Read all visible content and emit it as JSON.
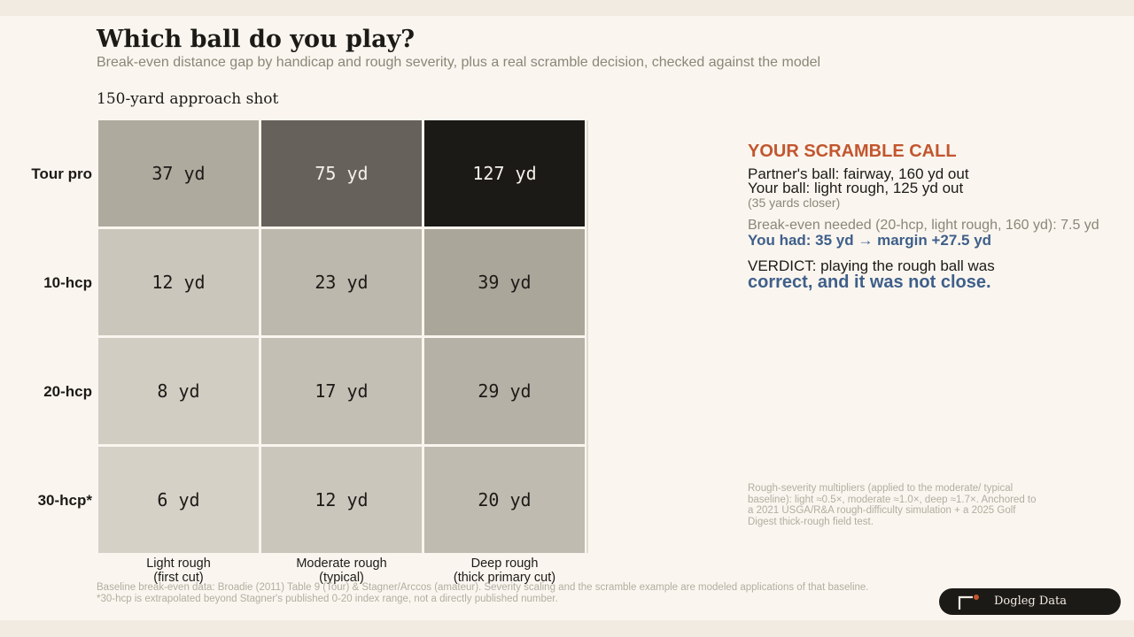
{
  "header": {
    "title": "Which ball do you play?",
    "subtitle": "Break-even distance gap by handicap and rough severity, plus a real scramble decision, checked against the model"
  },
  "chart_data": {
    "type": "heatmap",
    "title": "150-yard approach shot",
    "rows": [
      "Tour pro",
      "10-hcp",
      "20-hcp",
      "30-hcp*"
    ],
    "columns": [
      {
        "line1": "Light rough",
        "line2": "(first cut)"
      },
      {
        "line1": "Moderate rough",
        "line2": "(typical)"
      },
      {
        "line1": "Deep rough",
        "line2": "(thick primary cut)"
      }
    ],
    "values": [
      [
        37,
        75,
        127
      ],
      [
        12,
        23,
        39
      ],
      [
        8,
        17,
        29
      ],
      [
        6,
        12,
        20
      ]
    ],
    "unit": "yd",
    "color_scale": {
      "low": "#f0ebe3",
      "mid": "#afaa9e",
      "high": "#1c1a17",
      "max_value": 127
    }
  },
  "scramble": {
    "heading": "YOUR SCRAMBLE CALL",
    "partner": "Partner's ball: fairway, 160 yd out",
    "yours": "Your ball: light rough, 125 yd out",
    "closer": "(35 yards closer)",
    "breakeven": "Break-even needed (20-hcp, light rough, 160 yd): 7.5 yd",
    "had": "You had: 35 yd  →  margin +27.5 yd",
    "verdict_line1": "VERDICT: playing the rough ball was",
    "verdict_line2": "correct, and it was not close."
  },
  "side_note": "Rough-severity multipliers (applied to the moderate/ typical baseline): light ≈0.5×, moderate ≈1.0×, deep ≈1.7×. Anchored to a 2021 USGA/R&A rough-difficulty simulation + a 2025 Golf Digest thick-rough field test.",
  "footnotes": {
    "line1": "Baseline break-even data: Broadie (2011) Table 9 (Tour) & Stagner/Arccos (amateur). Severity scaling and the scramble example are modeled applications of that baseline.",
    "line2": "*30-hcp is extrapolated beyond Stagner's published 0-20 index range, not a directly published number."
  },
  "brand": {
    "name": "Dogleg Data",
    "accent": "#c2562f"
  }
}
